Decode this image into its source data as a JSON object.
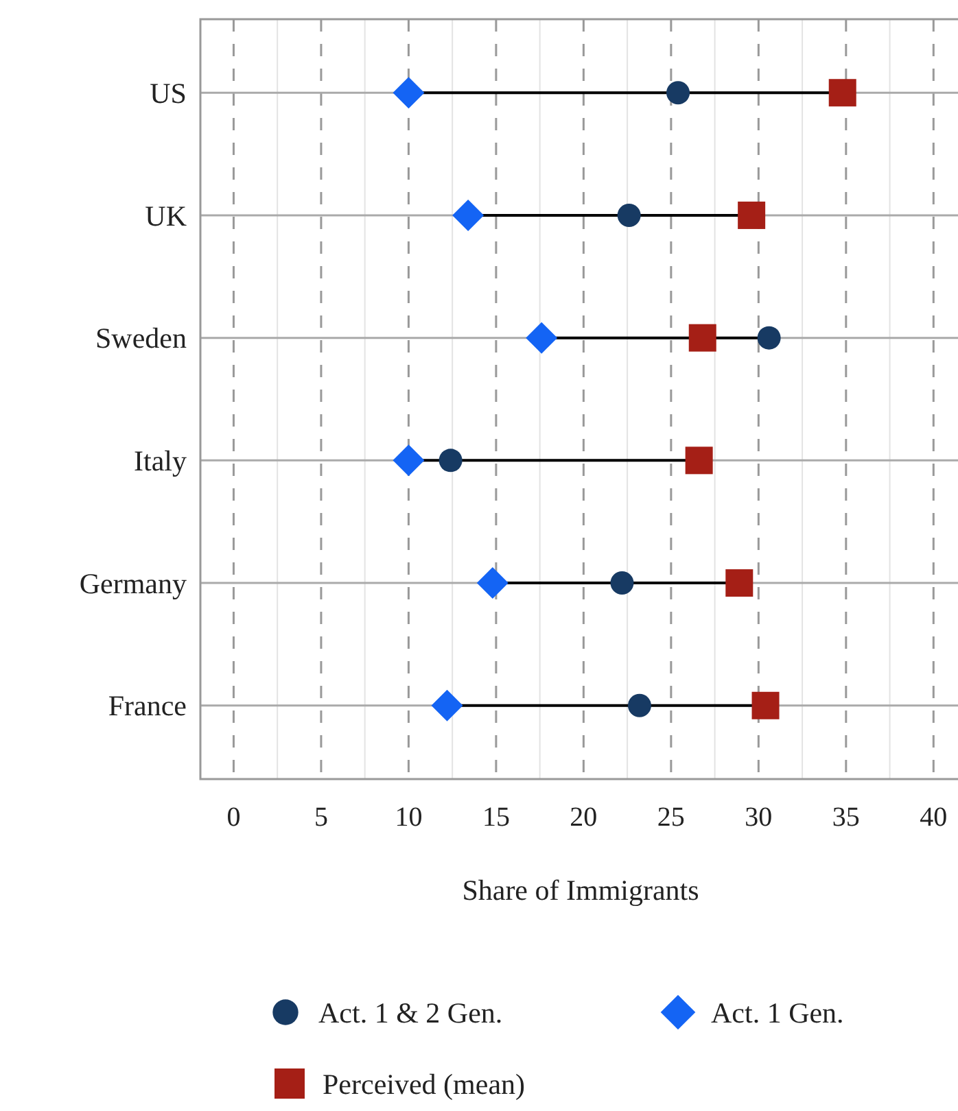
{
  "chart_data": {
    "type": "scatter",
    "orientation": "horizontal",
    "xlabel": "Share of Immigrants",
    "categories": [
      "US",
      "UK",
      "Sweden",
      "Italy",
      "Germany",
      "France"
    ],
    "series": [
      {
        "name": "Act. 1 & 2 Gen.",
        "color": "#173a63",
        "marker": "circle",
        "values": [
          25.4,
          22.6,
          30.6,
          12.4,
          22.2,
          23.2
        ]
      },
      {
        "name": "Act. 1 Gen.",
        "color": "#1464f4",
        "marker": "diamond",
        "values": [
          10.0,
          13.4,
          17.6,
          10.0,
          14.8,
          12.2
        ]
      },
      {
        "name": "Perceived (mean)",
        "color": "#a51f16",
        "marker": "square",
        "values": [
          34.8,
          29.6,
          26.8,
          26.6,
          28.9,
          30.4
        ]
      }
    ],
    "xlim": [
      -1.9,
      41.4
    ],
    "xticks": [
      0,
      {
        "value": 2.5,
        "label": null
      },
      5,
      {
        "value": 7.5,
        "label": null
      },
      10,
      {
        "value": 12.5,
        "label": null
      },
      15,
      {
        "value": 17.5,
        "label": null
      },
      20,
      {
        "value": 22.5,
        "label": null
      },
      25,
      {
        "value": 27.5,
        "label": null
      },
      30,
      {
        "value": 32.5,
        "label": null
      },
      35,
      {
        "value": 37.5,
        "label": null
      },
      40
    ],
    "grid": true,
    "legend": "bottom"
  }
}
